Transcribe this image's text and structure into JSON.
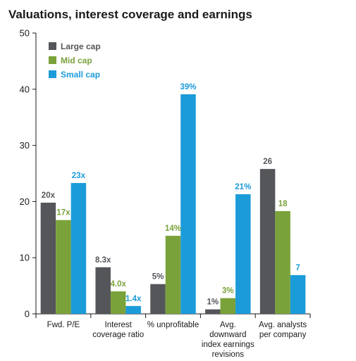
{
  "chart_data": {
    "type": "bar",
    "title": "Valuations, interest coverage and earnings",
    "categories": [
      [
        "Fwd. P/E"
      ],
      [
        "Interest",
        "coverage ratio"
      ],
      [
        "% unprofitable"
      ],
      [
        "Avg.",
        "downward",
        "index earnings",
        "revisions"
      ],
      [
        "Avg. analysts",
        "per company"
      ]
    ],
    "series": [
      {
        "name": "Large cap",
        "color": "#54565a",
        "values": [
          19.8,
          8.3,
          5.3,
          0.8,
          25.8
        ],
        "labels": [
          "20x",
          "8.3x",
          "5%",
          "1%",
          "26"
        ]
      },
      {
        "name": "Mid cap",
        "color": "#7aa23a",
        "values": [
          16.7,
          4.0,
          13.9,
          2.8,
          18.3
        ],
        "labels": [
          "17x",
          "4.0x",
          "14%",
          "3%",
          "18"
        ]
      },
      {
        "name": "Small cap",
        "color": "#1c9bd9",
        "values": [
          23.3,
          1.4,
          39.1,
          21.3,
          6.9
        ],
        "labels": [
          "23x",
          "1.4x",
          "39%",
          "21%",
          "7"
        ]
      }
    ],
    "yticks": [
      0,
      10,
      20,
      30,
      40,
      50
    ],
    "ylim": [
      0,
      50
    ],
    "grid": false,
    "legend": "top-left"
  }
}
